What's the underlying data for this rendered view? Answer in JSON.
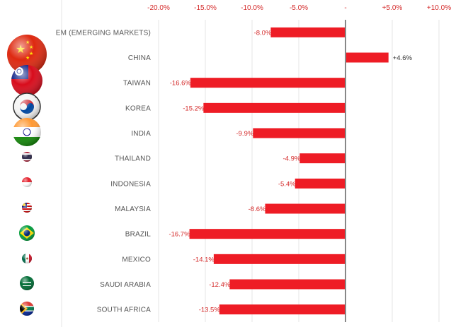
{
  "chart_data": {
    "type": "bar",
    "orientation": "horizontal",
    "title": "",
    "xlabel": "",
    "ylabel": "",
    "xlim": [
      -20,
      10
    ],
    "x_ticks": [
      -20,
      -15,
      -10,
      -5,
      0,
      5,
      10
    ],
    "x_tick_labels": [
      "-20.0%",
      "-15.0%",
      "-10.0%",
      "-5.0%",
      "-",
      "+5.0%",
      "+10.0%"
    ],
    "grid": "vertical",
    "categories": [
      "EM (EMERGING MARKETS)",
      "CHINA",
      "TAIWAN",
      "KOREA",
      "INDIA",
      "THAILAND",
      "INDONESIA",
      "MALAYSIA",
      "BRAZIL",
      "MEXICO",
      "SAUDI ARABIA",
      "SOUTH AFRICA"
    ],
    "values": [
      -8.0,
      4.6,
      -16.6,
      -15.2,
      -9.9,
      -4.9,
      -5.4,
      -8.6,
      -16.7,
      -14.1,
      -12.4,
      -13.5
    ],
    "data_labels": [
      "-8.0%",
      "+4.6%",
      "-16.6%",
      "-15.2%",
      "-9.9%",
      "-4.9%",
      "-5.4%",
      "-8.6%",
      "-16.7%",
      "-14.1%",
      "-12.4%",
      "-13.5%"
    ],
    "bar_color": "#ee1c25",
    "negative_label_color": "#d42a2a",
    "positive_label_color": "#333333",
    "flags": [
      "none",
      "china-flag-icon",
      "taiwan-flag-icon",
      "korea-flag-icon",
      "india-flag-icon",
      "thailand-flag-icon",
      "indonesia-flag-icon",
      "malaysia-flag-icon",
      "brazil-flag-icon",
      "mexico-flag-icon",
      "saudi-arabia-flag-icon",
      "south-africa-flag-icon"
    ]
  }
}
